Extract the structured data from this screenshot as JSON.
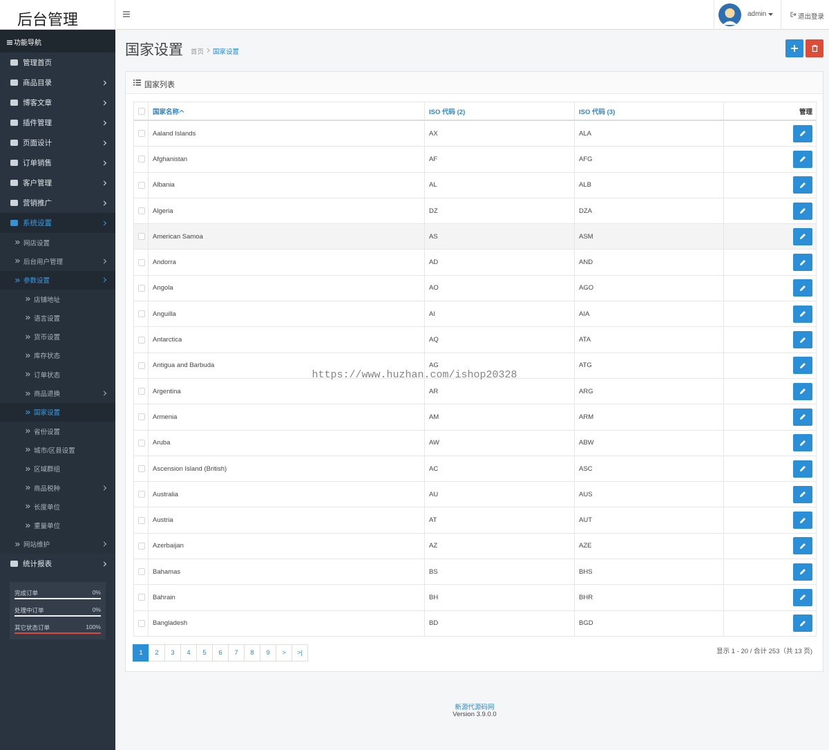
{
  "header": {
    "logo": "后台管理",
    "user": "admin",
    "logout": "退出登录"
  },
  "sidebar": {
    "title": "功能导航",
    "menu": [
      {
        "label": "管理首页",
        "level": 1,
        "arrow": false
      },
      {
        "label": "商品目录",
        "level": 1,
        "arrow": true
      },
      {
        "label": "博客文章",
        "level": 1,
        "arrow": true
      },
      {
        "label": "插件管理",
        "level": 1,
        "arrow": true
      },
      {
        "label": "页面设计",
        "level": 1,
        "arrow": true
      },
      {
        "label": "订单销售",
        "level": 1,
        "arrow": true
      },
      {
        "label": "客户管理",
        "level": 1,
        "arrow": true
      },
      {
        "label": "营销推广",
        "level": 1,
        "arrow": true
      },
      {
        "label": "系统设置",
        "level": 1,
        "arrow": true,
        "active": true
      },
      {
        "label": "网店设置",
        "level": 2,
        "arrow": false
      },
      {
        "label": "后台用户管理",
        "level": 2,
        "arrow": true
      },
      {
        "label": "参数设置",
        "level": 2,
        "arrow": true,
        "active": true
      },
      {
        "label": "店铺地址",
        "level": 3,
        "arrow": false
      },
      {
        "label": "语言设置",
        "level": 3,
        "arrow": false
      },
      {
        "label": "货币设置",
        "level": 3,
        "arrow": false
      },
      {
        "label": "库存状态",
        "level": 3,
        "arrow": false
      },
      {
        "label": "订单状态",
        "level": 3,
        "arrow": false
      },
      {
        "label": "商品退换",
        "level": 3,
        "arrow": true
      },
      {
        "label": "国家设置",
        "level": 3,
        "arrow": false,
        "active": true
      },
      {
        "label": "省份设置",
        "level": 3,
        "arrow": false
      },
      {
        "label": "城市/区县设置",
        "level": 3,
        "arrow": false
      },
      {
        "label": "区域群组",
        "level": 3,
        "arrow": false
      },
      {
        "label": "商品税种",
        "level": 3,
        "arrow": true
      },
      {
        "label": "长度单位",
        "level": 3,
        "arrow": false
      },
      {
        "label": "重量单位",
        "level": 3,
        "arrow": false
      },
      {
        "label": "网站维护",
        "level": 2,
        "arrow": true
      },
      {
        "label": "统计报表",
        "level": 1,
        "arrow": true
      }
    ],
    "stats": [
      {
        "label": "完成订单",
        "percent": {
          "value": 0,
          "label": "0%"
        }
      },
      {
        "label": "处理中订单",
        "percent": {
          "value": 0,
          "label": "0%"
        }
      },
      {
        "label": "其它状态订单",
        "percent": {
          "value": 100,
          "label": "100%"
        }
      }
    ]
  },
  "page": {
    "title": "国家设置",
    "breadcrumb": [
      "首页",
      "国家设置"
    ]
  },
  "panel": {
    "title": "国家列表",
    "columns": [
      "国家名称",
      "ISO 代码 (2)",
      "ISO 代码 (3)",
      "管理"
    ],
    "rows": [
      [
        "Aaland Islands",
        "AX",
        "ALA"
      ],
      [
        "Afghanistan",
        "AF",
        "AFG"
      ],
      [
        "Albania",
        "AL",
        "ALB"
      ],
      [
        "Algeria",
        "DZ",
        "DZA"
      ],
      [
        "American Samoa",
        "AS",
        "ASM"
      ],
      [
        "Andorra",
        "AD",
        "AND"
      ],
      [
        "Angola",
        "AO",
        "AGO"
      ],
      [
        "Anguilla",
        "AI",
        "AIA"
      ],
      [
        "Antarctica",
        "AQ",
        "ATA"
      ],
      [
        "Antigua and Barbuda",
        "AG",
        "ATG"
      ],
      [
        "Argentina",
        "AR",
        "ARG"
      ],
      [
        "Armenia",
        "AM",
        "ARM"
      ],
      [
        "Aruba",
        "AW",
        "ABW"
      ],
      [
        "Ascension Island (British)",
        "AC",
        "ASC"
      ],
      [
        "Australia",
        "AU",
        "AUS"
      ],
      [
        "Austria",
        "AT",
        "AUT"
      ],
      [
        "Azerbaijan",
        "AZ",
        "AZE"
      ],
      [
        "Bahamas",
        "BS",
        "BHS"
      ],
      [
        "Bahrain",
        "BH",
        "BHR"
      ],
      [
        "Bangladesh",
        "BD",
        "BGD"
      ]
    ]
  },
  "pagination": {
    "pages": [
      1,
      2,
      3,
      4,
      5,
      6,
      7,
      8,
      9,
      ">",
      ">|"
    ],
    "summary": "显示 1 - 20 / 合计 253（共 13 页)"
  },
  "watermark": "https://www.huzhan.com/ishop20328",
  "footer": {
    "link": "新源代源码网",
    "version": "Version 3.9.0.0"
  }
}
